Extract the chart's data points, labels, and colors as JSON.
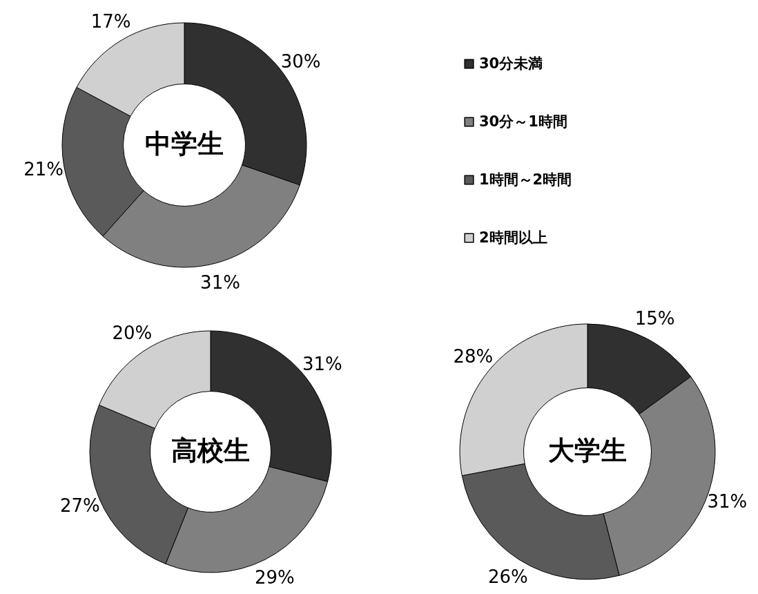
{
  "chart_data": [
    {
      "type": "donut",
      "title": "中学生",
      "categories": [
        "30分未満",
        "30分～1時間",
        "1時間～2時間",
        "2時間以上"
      ],
      "values": [
        30,
        31,
        21,
        17
      ],
      "value_labels": [
        "30%",
        "31%",
        "21%",
        "17%"
      ],
      "colors": [
        "#303030",
        "#808080",
        "#5a5a5a",
        "#d0d0d0"
      ],
      "legend": "right"
    },
    {
      "type": "donut",
      "title": "高校生",
      "categories": [
        null,
        null,
        null,
        null
      ],
      "values": [
        31,
        29,
        27,
        20
      ],
      "value_labels": [
        "31%",
        "29%",
        "27%",
        "20%"
      ],
      "colors": [
        "#303030",
        "#808080",
        "#5a5a5a",
        "#d0d0d0"
      ]
    },
    {
      "type": "donut",
      "title": "大学生",
      "categories": [
        null,
        null,
        null,
        null
      ],
      "values": [
        15,
        31,
        26,
        28
      ],
      "value_labels": [
        "15%",
        "31%",
        "26%",
        "28%"
      ],
      "colors": [
        "#303030",
        "#808080",
        "#5a5a5a",
        "#d0d0d0"
      ]
    }
  ]
}
